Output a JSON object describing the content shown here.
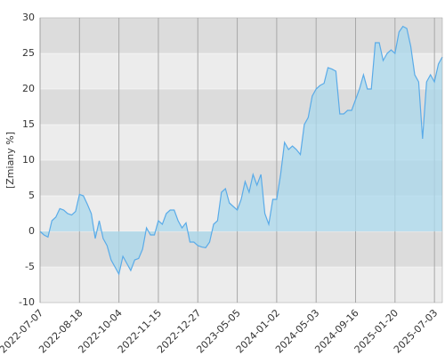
{
  "chart_data": {
    "type": "area",
    "y_label": "[Zmiany %]",
    "categories": [
      "2022-07-07",
      null,
      null,
      null,
      null,
      null,
      null,
      null,
      null,
      null,
      "2022-08-18",
      null,
      null,
      null,
      null,
      null,
      null,
      null,
      null,
      null,
      "2022-10-04",
      null,
      null,
      null,
      null,
      null,
      null,
      null,
      null,
      null,
      "2022-11-15",
      null,
      null,
      null,
      null,
      null,
      null,
      null,
      null,
      null,
      "2022-12-27",
      null,
      null,
      null,
      null,
      null,
      null,
      null,
      null,
      null,
      "2023-05-05",
      null,
      null,
      null,
      null,
      null,
      null,
      null,
      null,
      null,
      "2024-01-02",
      null,
      null,
      null,
      null,
      null,
      null,
      null,
      null,
      null,
      "2024-05-03",
      null,
      null,
      null,
      null,
      null,
      null,
      null,
      null,
      null,
      "2024-09-16",
      null,
      null,
      null,
      null,
      null,
      null,
      null,
      null,
      null,
      "2025-01-20",
      null,
      null,
      null,
      null,
      null,
      null,
      null,
      null,
      null,
      "2025-07-03",
      null,
      null
    ],
    "values": [
      0,
      -0.5,
      -0.8,
      1.5,
      2,
      3.2,
      3,
      2.5,
      2.3,
      2.8,
      5.2,
      5,
      3.8,
      2.5,
      -1,
      1.5,
      -1,
      -2,
      -4,
      -5,
      -6,
      -3.5,
      -4.5,
      -5.5,
      -4,
      -3.8,
      -2.5,
      0.5,
      -0.5,
      -0.5,
      1.5,
      1,
      2.5,
      3,
      3,
      1.5,
      0.5,
      1.2,
      -1.5,
      -1.5,
      -2,
      -2.2,
      -2.3,
      -1.5,
      1,
      1.5,
      5.5,
      6,
      4,
      3.5,
      3,
      4.5,
      7,
      5.5,
      8,
      6.5,
      8,
      2.5,
      1,
      4.5,
      4.5,
      8,
      12.5,
      11.5,
      12,
      11.5,
      10.8,
      15,
      16,
      19,
      20,
      20.5,
      20.8,
      23,
      22.8,
      22.5,
      16.5,
      16.5,
      17,
      17,
      18.5,
      20,
      22,
      20,
      20,
      26.5,
      26.5,
      24,
      25,
      25.5,
      25,
      28,
      28.8,
      28.5,
      26,
      22,
      21,
      13,
      21,
      22,
      21,
      23.5,
      24.5
    ],
    "color": "#5aabe8",
    "fill": "#aad8ec",
    "ylim": [
      -10,
      30
    ],
    "yticks": [
      -10,
      -5,
      0,
      5,
      10,
      15,
      20,
      25,
      30
    ],
    "grid": true
  }
}
